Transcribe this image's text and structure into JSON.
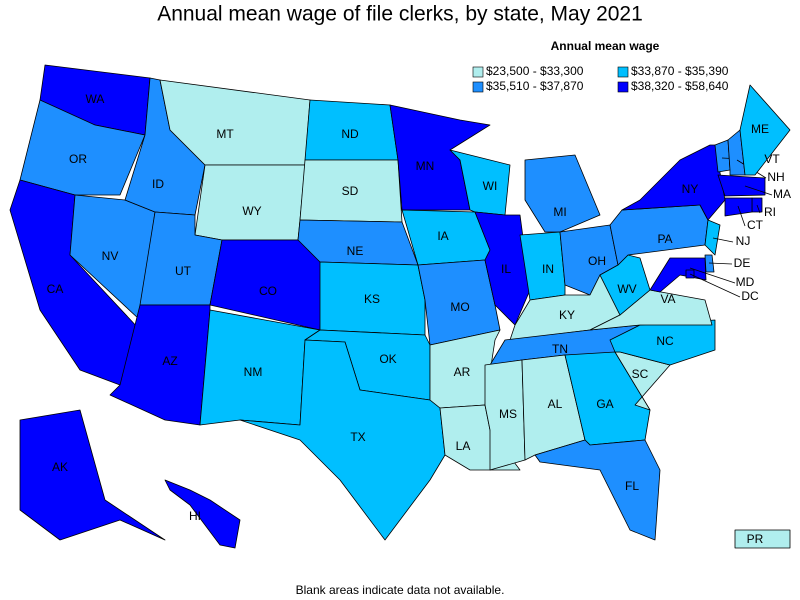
{
  "title": "Annual mean wage of file clerks, by state, May 2021",
  "legend": {
    "title": "Annual mean wage",
    "items": [
      {
        "label": "$23,500 - $33,300",
        "color": "#b0eeee"
      },
      {
        "label": "$33,870 - $35,390",
        "color": "#00bfff"
      },
      {
        "label": "$35,510 - $37,870",
        "color": "#1e8fff"
      },
      {
        "label": "$38,320 - $58,640",
        "color": "#0000ff"
      }
    ]
  },
  "states": [
    {
      "label": "WA",
      "color": "#0000ff"
    },
    {
      "label": "OR",
      "color": "#1e8fff"
    },
    {
      "label": "CA",
      "color": "#0000ff"
    },
    {
      "label": "NV",
      "color": "#1e8fff"
    },
    {
      "label": "ID",
      "color": "#1e8fff"
    },
    {
      "label": "MT",
      "color": "#b0eeee"
    },
    {
      "label": "WY",
      "color": "#b0eeee"
    },
    {
      "label": "UT",
      "color": "#1e8fff"
    },
    {
      "label": "CO",
      "color": "#0000ff"
    },
    {
      "label": "AZ",
      "color": "#0000ff"
    },
    {
      "label": "NM",
      "color": "#00bfff"
    },
    {
      "label": "ND",
      "color": "#00bfff"
    },
    {
      "label": "SD",
      "color": "#b0eeee"
    },
    {
      "label": "NE",
      "color": "#1e8fff"
    },
    {
      "label": "KS",
      "color": "#00bfff"
    },
    {
      "label": "OK",
      "color": "#00bfff"
    },
    {
      "label": "TX",
      "color": "#00bfff"
    },
    {
      "label": "MN",
      "color": "#0000ff"
    },
    {
      "label": "IA",
      "color": "#00bfff"
    },
    {
      "label": "MO",
      "color": "#1e8fff"
    },
    {
      "label": "AR",
      "color": "#b0eeee"
    },
    {
      "label": "LA",
      "color": "#b0eeee"
    },
    {
      "label": "WI",
      "color": "#00bfff"
    },
    {
      "label": "IL",
      "color": "#0000ff"
    },
    {
      "label": "MI",
      "color": "#1e8fff"
    },
    {
      "label": "IN",
      "color": "#00bfff"
    },
    {
      "label": "OH",
      "color": "#1e8fff"
    },
    {
      "label": "KY",
      "color": "#b0eeee"
    },
    {
      "label": "TN",
      "color": "#1e8fff"
    },
    {
      "label": "MS",
      "color": "#b0eeee"
    },
    {
      "label": "AL",
      "color": "#b0eeee"
    },
    {
      "label": "GA",
      "color": "#00bfff"
    },
    {
      "label": "FL",
      "color": "#1e8fff"
    },
    {
      "label": "SC",
      "color": "#b0eeee"
    },
    {
      "label": "NC",
      "color": "#00bfff"
    },
    {
      "label": "VA",
      "color": "#b0eeee"
    },
    {
      "label": "WV",
      "color": "#00bfff"
    },
    {
      "label": "PA",
      "color": "#1e8fff"
    },
    {
      "label": "NY",
      "color": "#0000ff"
    },
    {
      "label": "VT",
      "color": "#1e8fff"
    },
    {
      "label": "NH",
      "color": "#1e8fff"
    },
    {
      "label": "ME",
      "color": "#00bfff"
    },
    {
      "label": "MA",
      "color": "#0000ff"
    },
    {
      "label": "RI",
      "color": "#0000ff"
    },
    {
      "label": "CT",
      "color": "#0000ff"
    },
    {
      "label": "NJ",
      "color": "#00bfff"
    },
    {
      "label": "DE",
      "color": "#1e8fff"
    },
    {
      "label": "MD",
      "color": "#0000ff"
    },
    {
      "label": "DC",
      "color": "#0000ff"
    },
    {
      "label": "AK",
      "color": "#0000ff"
    },
    {
      "label": "HI",
      "color": "#0000ff"
    },
    {
      "label": "PR",
      "color": "#b0eeee"
    }
  ],
  "note": "Blank areas indicate data not available."
}
